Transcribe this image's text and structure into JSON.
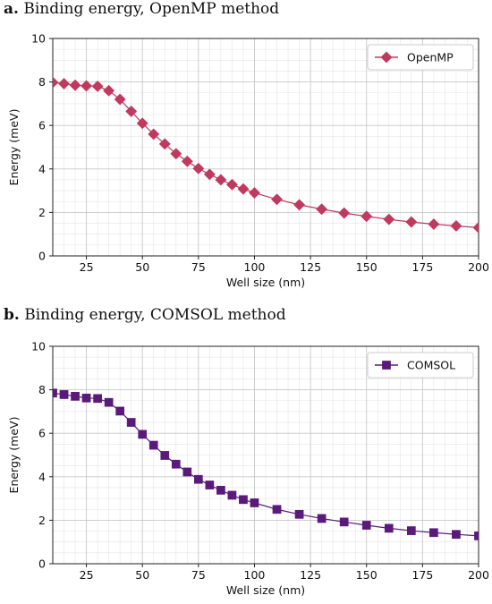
{
  "panels": [
    {
      "tag": "a.",
      "title": "Binding energy, OpenMP method",
      "color": "#c0395f",
      "marker": "diamond"
    },
    {
      "tag": "b.",
      "title": "Binding energy, COMSOL method",
      "color": "#5a1a7a",
      "marker": "square"
    }
  ],
  "chart_data": [
    {
      "type": "line",
      "title": "",
      "xlabel": "Well size (nm)",
      "ylabel": "Energy (meV)",
      "xlim": [
        10,
        200
      ],
      "ylim": [
        0,
        10
      ],
      "xticks": [
        25,
        50,
        75,
        100,
        125,
        150,
        175,
        200
      ],
      "yticks": [
        0,
        2,
        4,
        6,
        8,
        10
      ],
      "grid": true,
      "legend_position": "top-right",
      "x": [
        10,
        15,
        20,
        25,
        30,
        35,
        40,
        45,
        50,
        55,
        60,
        65,
        70,
        75,
        80,
        85,
        90,
        95,
        100,
        110,
        120,
        130,
        140,
        150,
        160,
        170,
        180,
        190,
        200
      ],
      "series": [
        {
          "name": "OpenMP",
          "values": [
            7.98,
            7.92,
            7.85,
            7.82,
            7.8,
            7.6,
            7.2,
            6.65,
            6.1,
            5.6,
            5.15,
            4.7,
            4.35,
            4.02,
            3.75,
            3.5,
            3.28,
            3.08,
            2.9,
            2.6,
            2.35,
            2.15,
            1.97,
            1.82,
            1.68,
            1.56,
            1.46,
            1.38,
            1.3
          ]
        }
      ]
    },
    {
      "type": "line",
      "title": "",
      "xlabel": "Well size (nm)",
      "ylabel": "Energy (meV)",
      "xlim": [
        10,
        200
      ],
      "ylim": [
        0,
        10
      ],
      "xticks": [
        25,
        50,
        75,
        100,
        125,
        150,
        175,
        200
      ],
      "yticks": [
        0,
        2,
        4,
        6,
        8,
        10
      ],
      "grid": true,
      "legend_position": "top-right",
      "x": [
        10,
        15,
        20,
        25,
        30,
        35,
        40,
        45,
        50,
        55,
        60,
        65,
        70,
        75,
        80,
        85,
        90,
        95,
        100,
        110,
        120,
        130,
        140,
        150,
        160,
        170,
        180,
        190,
        200
      ],
      "series": [
        {
          "name": "COMSOL",
          "values": [
            7.85,
            7.78,
            7.7,
            7.62,
            7.6,
            7.42,
            7.02,
            6.5,
            5.95,
            5.45,
            4.98,
            4.58,
            4.22,
            3.88,
            3.62,
            3.38,
            3.15,
            2.95,
            2.8,
            2.5,
            2.27,
            2.08,
            1.92,
            1.77,
            1.63,
            1.52,
            1.43,
            1.35,
            1.28
          ]
        }
      ]
    }
  ]
}
